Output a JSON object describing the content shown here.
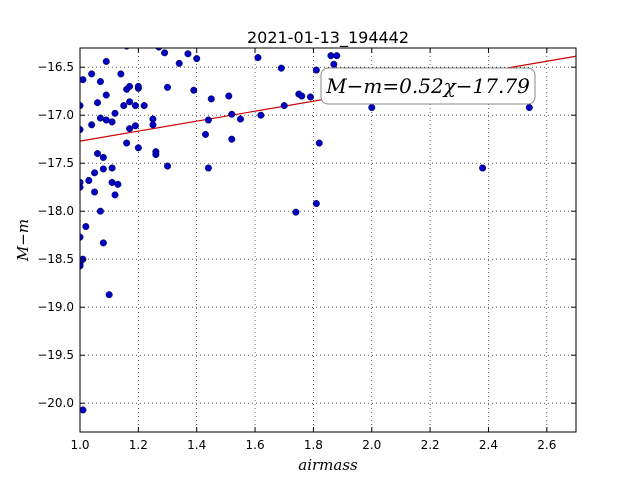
{
  "chart_data": {
    "type": "scatter",
    "title": "2021-01-13_194442",
    "xlabel": "airmass",
    "ylabel": "M−m",
    "xlim": [
      1.0,
      2.7
    ],
    "ylim": [
      -20.3,
      -16.3
    ],
    "xticks": [
      1.0,
      1.2,
      1.4,
      1.6,
      1.8,
      2.0,
      2.2,
      2.4,
      2.6
    ],
    "xtick_labels": [
      "1.0",
      "1.2",
      "1.4",
      "1.6",
      "1.8",
      "2.0",
      "2.2",
      "2.4",
      "2.6"
    ],
    "yticks": [
      -16.5,
      -17.0,
      -17.5,
      -18.0,
      -18.5,
      -19.0,
      -19.5,
      -20.0
    ],
    "ytick_labels": [
      "−16.5",
      "−17.0",
      "−17.5",
      "−18.0",
      "−18.5",
      "−19.0",
      "−19.5",
      "−20.0"
    ],
    "grid": true,
    "point_color": "#0000bf",
    "fit_color": "#cc0000",
    "fit": {
      "slope": 0.52,
      "intercept": -17.79
    },
    "annotation": "M−m=0.52χ−17.79",
    "points": [
      [
        1.0,
        -16.9
      ],
      [
        1.0,
        -17.15
      ],
      [
        1.0,
        -17.7
      ],
      [
        1.0,
        -17.75
      ],
      [
        1.0,
        -18.27
      ],
      [
        1.0,
        -18.55
      ],
      [
        1.0,
        -18.57
      ],
      [
        1.01,
        -16.63
      ],
      [
        1.01,
        -18.5
      ],
      [
        1.01,
        -20.07
      ],
      [
        1.02,
        -18.16
      ],
      [
        1.03,
        -17.68
      ],
      [
        1.04,
        -16.57
      ],
      [
        1.04,
        -17.1
      ],
      [
        1.05,
        -17.6
      ],
      [
        1.05,
        -17.8
      ],
      [
        1.06,
        -17.4
      ],
      [
        1.06,
        -16.87
      ],
      [
        1.07,
        -16.65
      ],
      [
        1.07,
        -17.03
      ],
      [
        1.07,
        -18.0
      ],
      [
        1.08,
        -17.44
      ],
      [
        1.08,
        -17.56
      ],
      [
        1.08,
        -18.33
      ],
      [
        1.09,
        -16.44
      ],
      [
        1.09,
        -16.79
      ],
      [
        1.09,
        -17.05
      ],
      [
        1.1,
        -18.87
      ],
      [
        1.11,
        -17.07
      ],
      [
        1.11,
        -17.55
      ],
      [
        1.11,
        -17.7
      ],
      [
        1.12,
        -16.98
      ],
      [
        1.12,
        -17.83
      ],
      [
        1.13,
        -17.72
      ],
      [
        1.14,
        -16.57
      ],
      [
        1.15,
        -16.9
      ],
      [
        1.16,
        -16.73
      ],
      [
        1.16,
        -17.29
      ],
      [
        1.16,
        -16.28
      ],
      [
        1.17,
        -16.7
      ],
      [
        1.17,
        -16.86
      ],
      [
        1.17,
        -17.14
      ],
      [
        1.19,
        -16.9
      ],
      [
        1.19,
        -17.11
      ],
      [
        1.2,
        -16.72
      ],
      [
        1.2,
        -16.7
      ],
      [
        1.2,
        -17.34
      ],
      [
        1.22,
        -16.9
      ],
      [
        1.25,
        -17.04
      ],
      [
        1.25,
        -17.1
      ],
      [
        1.26,
        -17.38
      ],
      [
        1.26,
        -17.41
      ],
      [
        1.27,
        -16.29
      ],
      [
        1.29,
        -16.35
      ],
      [
        1.3,
        -17.53
      ],
      [
        1.3,
        -16.71
      ],
      [
        1.34,
        -16.46
      ],
      [
        1.37,
        -16.36
      ],
      [
        1.39,
        -16.74
      ],
      [
        1.4,
        -16.41
      ],
      [
        1.43,
        -17.2
      ],
      [
        1.44,
        -17.55
      ],
      [
        1.44,
        -17.05
      ],
      [
        1.45,
        -16.83
      ],
      [
        1.51,
        -16.8
      ],
      [
        1.52,
        -17.25
      ],
      [
        1.52,
        -16.99
      ],
      [
        1.55,
        -17.04
      ],
      [
        1.61,
        -16.4
      ],
      [
        1.62,
        -17.0
      ],
      [
        1.69,
        -16.51
      ],
      [
        1.7,
        -16.9
      ],
      [
        1.74,
        -18.01
      ],
      [
        1.75,
        -16.78
      ],
      [
        1.76,
        -16.8
      ],
      [
        1.79,
        -16.81
      ],
      [
        1.81,
        -17.92
      ],
      [
        1.81,
        -16.53
      ],
      [
        1.82,
        -17.29
      ],
      [
        1.86,
        -16.38
      ],
      [
        1.87,
        -16.47
      ],
      [
        1.88,
        -16.38
      ],
      [
        2.0,
        -16.92
      ],
      [
        2.02,
        -16.84
      ],
      [
        2.38,
        -17.55
      ],
      [
        2.54,
        -16.92
      ]
    ]
  }
}
